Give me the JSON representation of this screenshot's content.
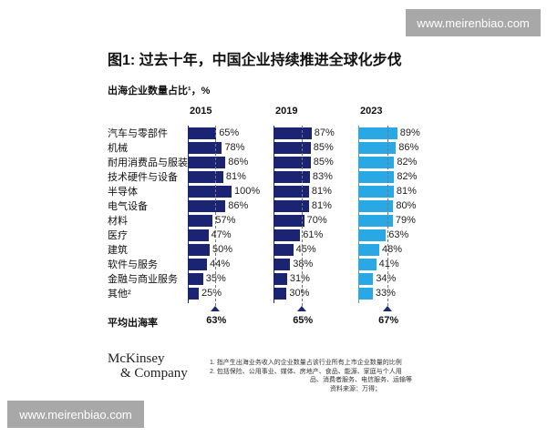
{
  "watermark": "www.meirenbiao.com",
  "chart_data": {
    "type": "bar",
    "title": "图1: 过去十年，中国企业持续推进全球化步伐",
    "subtitle": "出海企业数量占比¹，%",
    "categories": [
      "汽车与零部件",
      "机械",
      "耐用消费品与服装",
      "技术硬件与设备",
      "半导体",
      "电气设备",
      "材料",
      "医疗",
      "建筑",
      "软件与服务",
      "金融与商业服务",
      "其他²"
    ],
    "series": [
      {
        "name": "2015",
        "color": "#1a2472",
        "values": [
          65,
          78,
          86,
          81,
          100,
          86,
          57,
          47,
          50,
          44,
          35,
          25
        ],
        "average": 63
      },
      {
        "name": "2019",
        "color": "#1a2472",
        "values": [
          87,
          85,
          85,
          83,
          81,
          81,
          70,
          61,
          45,
          38,
          31,
          30
        ],
        "average": 65
      },
      {
        "name": "2023",
        "color": "#2aa8e6",
        "values": [
          89,
          86,
          82,
          82,
          81,
          80,
          79,
          63,
          48,
          41,
          34,
          33
        ],
        "average": 67
      }
    ],
    "avg_label": "平均出海率",
    "unit": "%"
  },
  "notes": {
    "n1": "1.  指产生出海业务收入的企业数量占该行业所有上市企业数量的比例",
    "n2a": "2.  包括保险、公用事业、媒体、房地产、食品、能源、家庭与个人用",
    "n2b": "品、消费者服务、电信服务、运输等",
    "source": "资料来源：万得；"
  },
  "logo": {
    "line1": "McKinsey",
    "line2": "& Company"
  }
}
